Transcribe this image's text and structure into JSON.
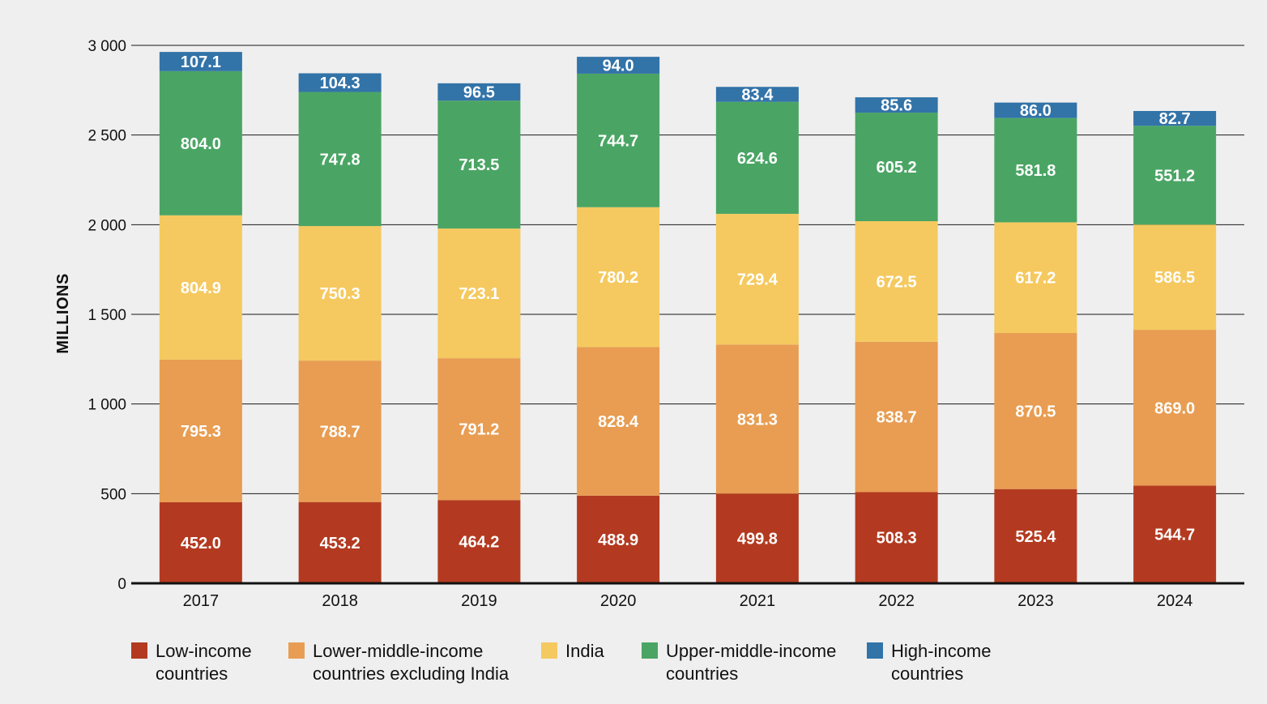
{
  "chart_data": {
    "type": "bar",
    "stacked": true,
    "title": "",
    "xlabel": "",
    "ylabel": "MILLIONS",
    "ylim": [
      0,
      3000
    ],
    "yticks": [
      0,
      500,
      1000,
      1500,
      2000,
      2500,
      3000
    ],
    "ytick_labels": [
      "0",
      "500",
      "1 000",
      "1 500",
      "2 000",
      "2 500",
      "3 000"
    ],
    "grid": true,
    "categories": [
      "2017",
      "2018",
      "2019",
      "2020",
      "2021",
      "2022",
      "2023",
      "2024"
    ],
    "series": [
      {
        "name": "Low-income countries",
        "legend_lines": [
          "Low-income",
          "countries"
        ],
        "color": "#b33a20",
        "values": [
          452.0,
          453.2,
          464.2,
          488.9,
          499.8,
          508.3,
          525.4,
          544.7
        ],
        "labels": [
          "452.0",
          "453.2",
          "464.2",
          "488.9",
          "499.8",
          "508.3",
          "525.4",
          "544.7"
        ]
      },
      {
        "name": "Lower-middle-income countries excluding India",
        "legend_lines": [
          "Lower-middle-income",
          "countries excluding India"
        ],
        "color": "#e89d52",
        "values": [
          795.3,
          788.7,
          791.2,
          828.4,
          831.3,
          838.7,
          870.5,
          869.0
        ],
        "labels": [
          "795.3",
          "788.7",
          "791.2",
          "828.4",
          "831.3",
          "838.7",
          "870.5",
          "869.0"
        ]
      },
      {
        "name": "India",
        "legend_lines": [
          "India"
        ],
        "color": "#f5c95f",
        "values": [
          804.9,
          750.3,
          723.1,
          780.2,
          729.4,
          672.5,
          617.2,
          586.5
        ],
        "labels": [
          "804.9",
          "750.3",
          "723.1",
          "780.2",
          "729.4",
          "672.5",
          "617.2",
          "586.5"
        ]
      },
      {
        "name": "Upper-middle-income countries",
        "legend_lines": [
          "Upper-middle-income",
          "countries"
        ],
        "color": "#4aa564",
        "values": [
          804.0,
          747.8,
          713.5,
          744.7,
          624.6,
          605.2,
          581.8,
          551.2
        ],
        "labels": [
          "804.0",
          "747.8",
          "713.5",
          "744.7",
          "624.6",
          "605.2",
          "581.8",
          "551.2"
        ]
      },
      {
        "name": "High-income countries",
        "legend_lines": [
          "High-income",
          "countries"
        ],
        "color": "#3273a8",
        "values": [
          107.1,
          104.3,
          96.5,
          94.0,
          83.4,
          85.6,
          86.0,
          82.7
        ],
        "labels": [
          "107.1",
          "104.3",
          "96.5",
          "94.0",
          "83.4",
          "85.6",
          "86.0",
          "82.7"
        ]
      }
    ],
    "legend_position": "bottom"
  }
}
